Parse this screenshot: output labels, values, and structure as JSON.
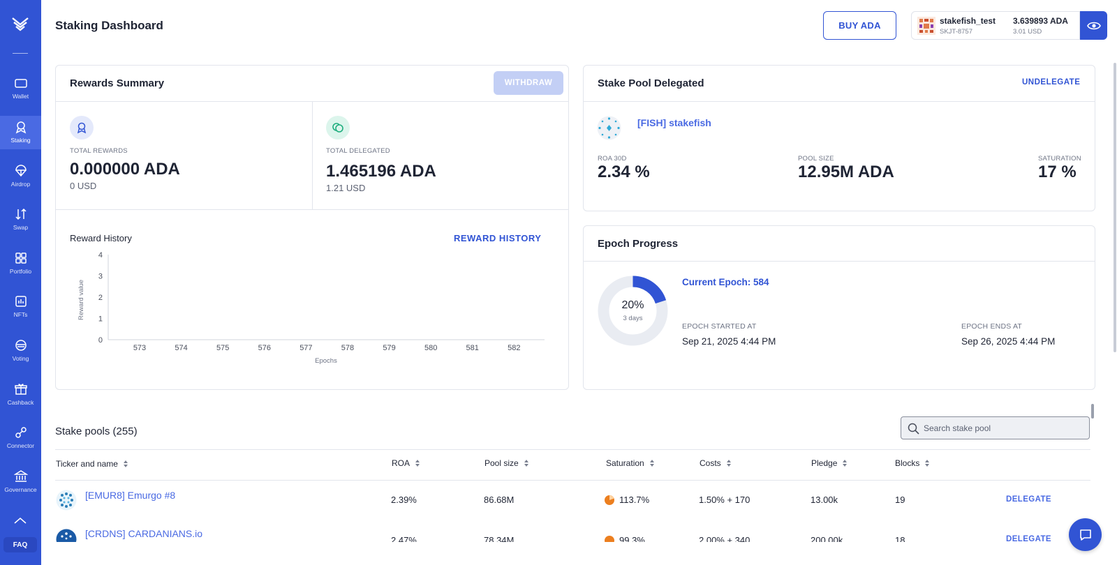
{
  "sidebar": {
    "items": [
      {
        "label": "Wallet",
        "icon": "wallet-icon"
      },
      {
        "label": "Staking",
        "icon": "staking-icon",
        "active": true
      },
      {
        "label": "Airdrop",
        "icon": "airdrop-icon"
      },
      {
        "label": "Swap",
        "icon": "swap-icon"
      },
      {
        "label": "Portfolio",
        "icon": "portfolio-icon"
      },
      {
        "label": "NFTs",
        "icon": "nft-icon"
      },
      {
        "label": "Voting",
        "icon": "voting-icon"
      },
      {
        "label": "Cashback",
        "icon": "cashback-icon"
      },
      {
        "label": "Connector",
        "icon": "connector-icon"
      },
      {
        "label": "Governance",
        "icon": "governance-icon"
      }
    ],
    "faq_label": "FAQ"
  },
  "header": {
    "title": "Staking Dashboard",
    "buy_label": "BUY ADA",
    "wallet": {
      "name": "stakefish_test",
      "id": "SKJT-8757",
      "balance": "3.639893 ADA",
      "balance_usd": "3.01 USD"
    }
  },
  "rewards": {
    "title": "Rewards Summary",
    "withdraw_label": "WITHDRAW",
    "total_rewards_label": "TOTAL REWARDS",
    "total_rewards_value": "0.000000 ADA",
    "total_rewards_usd": "0 USD",
    "total_delegated_label": "TOTAL DELEGATED",
    "total_delegated_value": "1.465196 ADA",
    "total_delegated_usd": "1.21 USD",
    "history_title": "Reward History",
    "history_link": "REWARD HISTORY"
  },
  "chart_data": {
    "type": "bar",
    "categories": [
      "573",
      "574",
      "575",
      "576",
      "577",
      "578",
      "579",
      "580",
      "581",
      "582"
    ],
    "values": [
      0,
      0,
      0,
      0,
      0,
      0,
      0,
      0,
      0,
      0
    ],
    "yticks": [
      "0",
      "1",
      "2",
      "3",
      "4"
    ],
    "ylim": [
      0,
      4
    ],
    "xlabel": "Epochs",
    "ylabel": "Reward value"
  },
  "pool": {
    "title": "Stake Pool Delegated",
    "undelegate_label": "UNDELEGATE",
    "name": "[FISH] stakefish",
    "roa_label": "ROA 30D",
    "roa_value": "2.34 %",
    "size_label": "POOL SIZE",
    "size_value": "12.95M ADA",
    "saturation_label": "SATURATION",
    "saturation_value": "17 %"
  },
  "epoch": {
    "title": "Epoch Progress",
    "progress_text": "20%",
    "progress_fraction": 0.2,
    "days_text": "3 days",
    "current": "Current Epoch: 584",
    "started_label": "EPOCH STARTED AT",
    "started_value": "Sep 21, 2025 4:44 PM",
    "ends_label": "EPOCH ENDS AT",
    "ends_value": "Sep 26, 2025 4:44 PM",
    "accent": "#3154d4"
  },
  "pools_table": {
    "title": "Stake pools (255)",
    "search_placeholder": "Search stake pool",
    "columns": [
      "Ticker and name",
      "ROA",
      "Pool size",
      "Saturation",
      "Costs",
      "Pledge",
      "Blocks"
    ],
    "rows": [
      {
        "name": "[EMUR8] Emurgo #8",
        "roa": "2.39%",
        "size": "86.68M",
        "saturation": "113.7%",
        "costs": "1.50% + 170",
        "pledge": "13.00k",
        "blocks": "19",
        "action": "DELEGATE"
      },
      {
        "name": "[CRDNS] CARDANIANS.io",
        "roa": "2.47%",
        "size": "78.34M",
        "saturation": "99.3%",
        "costs": "2.00% + 340",
        "pledge": "200.00k",
        "blocks": "18",
        "action": "DELEGATE"
      }
    ]
  }
}
